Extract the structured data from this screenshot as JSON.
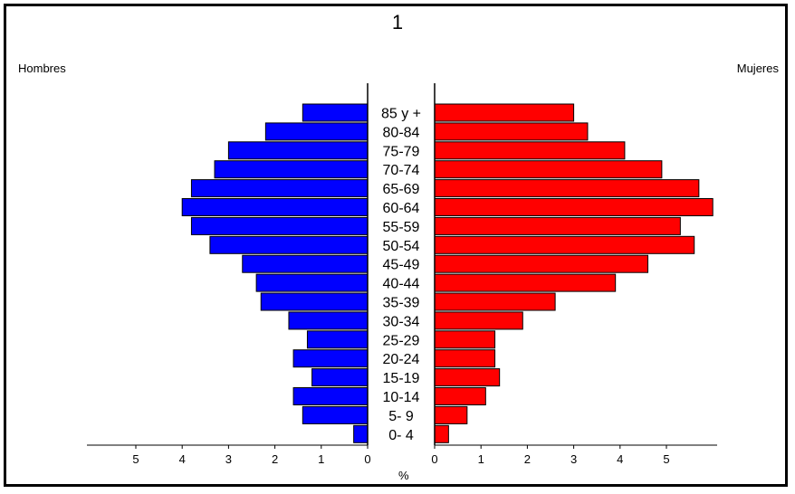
{
  "chart_data": {
    "type": "bar",
    "title": "1",
    "left_label": "Hombres",
    "right_label": "Mujeres",
    "xlabel": "%",
    "categories": [
      "85 y +",
      "80-84",
      "75-79",
      "70-74",
      "65-69",
      "60-64",
      "55-59",
      "50-54",
      "45-49",
      "40-44",
      "35-39",
      "30-34",
      "25-29",
      "20-24",
      "15-19",
      "10-14",
      "5- 9",
      "0- 4"
    ],
    "series": [
      {
        "name": "Hombres",
        "color": "#0000ff",
        "values": [
          1.4,
          2.2,
          3.0,
          3.3,
          3.8,
          4.0,
          3.8,
          3.4,
          2.7,
          2.4,
          2.3,
          1.7,
          1.3,
          1.6,
          1.2,
          1.6,
          1.4,
          0.3
        ]
      },
      {
        "name": "Mujeres",
        "color": "#ff0000",
        "values": [
          3.0,
          3.3,
          4.1,
          4.9,
          5.7,
          6.0,
          5.3,
          5.6,
          4.6,
          3.9,
          2.6,
          1.9,
          1.3,
          1.3,
          1.4,
          1.1,
          0.7,
          0.3
        ]
      }
    ],
    "x_ticks_left": [
      "5",
      "4",
      "3",
      "2",
      "1",
      "0"
    ],
    "x_ticks_right": [
      "0",
      "1",
      "2",
      "3",
      "4",
      "5"
    ],
    "xlim": [
      0,
      6
    ]
  }
}
